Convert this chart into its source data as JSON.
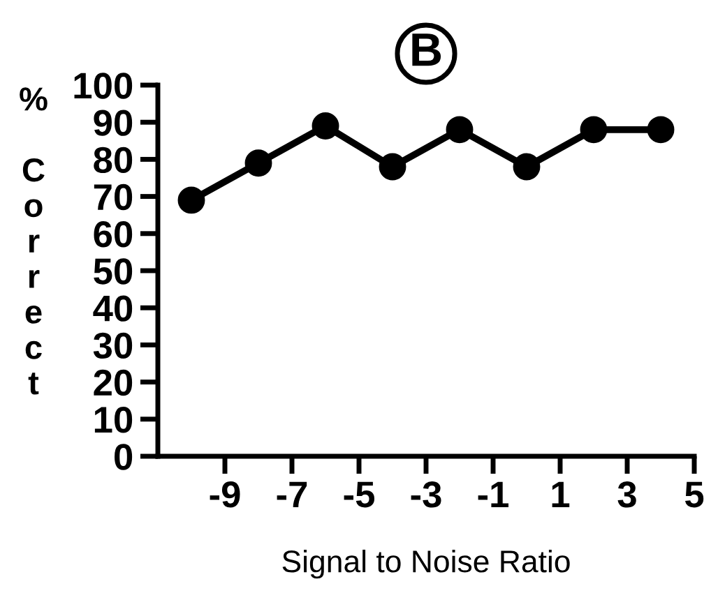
{
  "chart_data": {
    "type": "line",
    "title": "B",
    "xlabel": "Signal to Noise Ratio",
    "ylabel": "% Correct",
    "x": [
      -10,
      -8,
      -6,
      -4,
      -2,
      0,
      2,
      4
    ],
    "series": [
      {
        "color": "#000000",
        "values": [
          69,
          79,
          89,
          78,
          88,
          78,
          88,
          88
        ]
      }
    ],
    "xlim": [
      -11,
      5
    ],
    "xticks": [
      -9,
      -7,
      -5,
      -3,
      -1,
      1,
      3,
      5
    ],
    "ylim": [
      0,
      100
    ],
    "yticks": [
      0,
      10,
      20,
      30,
      40,
      50,
      60,
      70,
      80,
      90,
      100
    ],
    "grid": false,
    "legend": false,
    "marker": "circle",
    "line_style": "solid"
  }
}
